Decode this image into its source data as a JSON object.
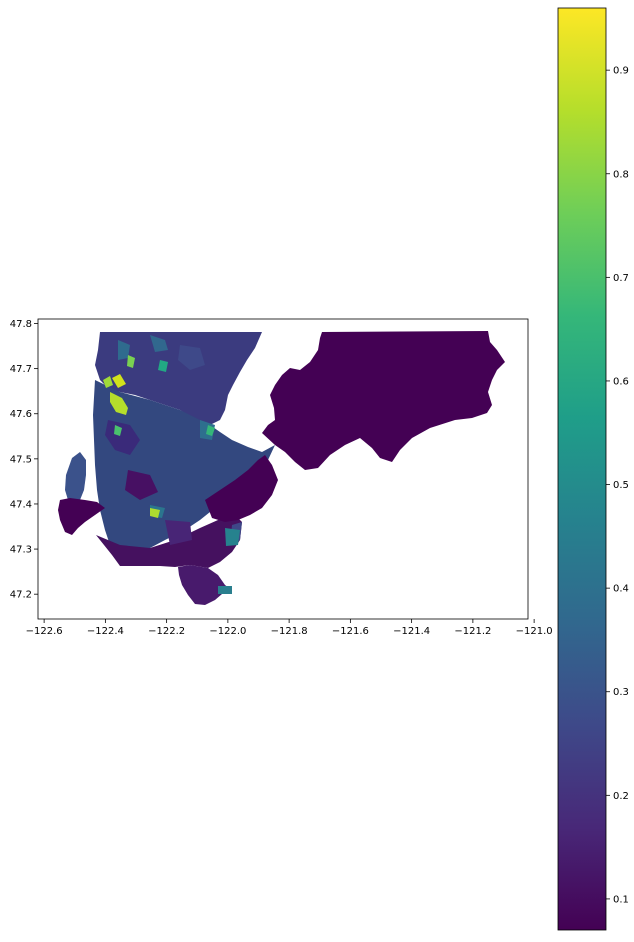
{
  "map": {
    "x_ticks": [
      {
        "value": -122.6,
        "label": "−122.6"
      },
      {
        "value": -122.4,
        "label": "−122.4"
      },
      {
        "value": -122.2,
        "label": "−122.2"
      },
      {
        "value": -122.0,
        "label": "−122.0"
      },
      {
        "value": -121.8,
        "label": "−121.8"
      },
      {
        "value": -121.6,
        "label": "−121.6"
      },
      {
        "value": -121.4,
        "label": "−121.4"
      },
      {
        "value": -121.2,
        "label": "−121.2"
      },
      {
        "value": -121.0,
        "label": "−121.0"
      }
    ],
    "y_ticks": [
      {
        "value": 47.2,
        "label": "47.2"
      },
      {
        "value": 47.3,
        "label": "47.3"
      },
      {
        "value": 47.4,
        "label": "47.4"
      },
      {
        "value": 47.5,
        "label": "47.5"
      },
      {
        "value": 47.6,
        "label": "47.6"
      },
      {
        "value": 47.7,
        "label": "47.7"
      },
      {
        "value": 47.8,
        "label": "47.8"
      }
    ],
    "xlim": [
      -122.62,
      -121.02
    ],
    "ylim": [
      47.145,
      47.81
    ]
  },
  "colorbar": {
    "colormap": "viridis",
    "range": [
      0.07,
      0.96
    ],
    "ticks": [
      {
        "value": 0.1,
        "label": "0.1"
      },
      {
        "value": 0.2,
        "label": "0.2"
      },
      {
        "value": 0.3,
        "label": "0.3"
      },
      {
        "value": 0.4,
        "label": "0.4"
      },
      {
        "value": 0.5,
        "label": "0.5"
      },
      {
        "value": 0.6,
        "label": "0.6"
      },
      {
        "value": 0.7,
        "label": "0.7"
      },
      {
        "value": 0.8,
        "label": "0.8"
      },
      {
        "value": 0.9,
        "label": "0.9"
      }
    ],
    "stop_colors": [
      "#440154",
      "#482878",
      "#3e4989",
      "#31688e",
      "#26828e",
      "#1f9e89",
      "#35b779",
      "#6ece58",
      "#b5de2b",
      "#fde725"
    ]
  }
}
